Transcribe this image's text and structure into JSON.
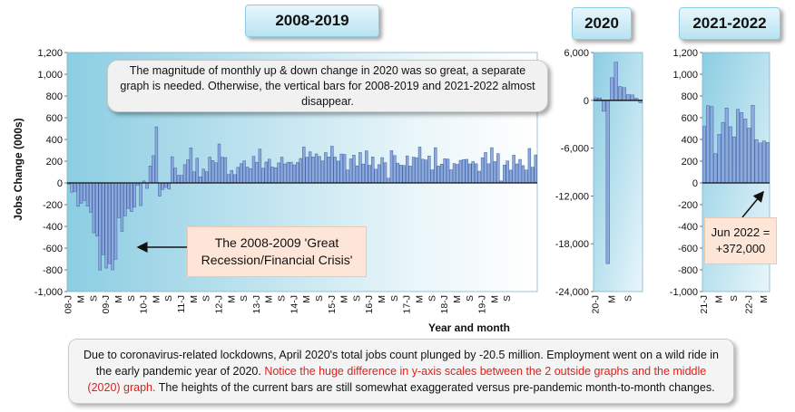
{
  "headers": {
    "period1": "2008-2019",
    "period2": "2020",
    "period3": "2021-2022"
  },
  "callouts": {
    "magnitude": "The magnitude of monthly up & down change in 2020 was so great, a separate graph is needed. Otherwise, the vertical bars for 2008-2019 and 2021-2022 almost disappear.",
    "recession_line1": "The 2008-2009 'Great",
    "recession_line2": "Recession/Financial Crisis'",
    "jun2022_line1": "Jun 2022 =",
    "jun2022_line2": "+372,000"
  },
  "note": {
    "part1": "Due to coronavirus-related lockdowns, April 2020's total jobs count plunged by -20.5 million. Employment went on a wild ride in the early pandemic year of 2020.",
    "part2": "Notice the huge difference in y-axis scales between the 2 outside graphs and the middle (2020) graph.",
    "part3": "The heights of the current bars are still somewhat exaggerated versus pre-pandemic month-to-month changes."
  },
  "colors": {
    "bar_fill": "#8eaadb",
    "bar_stroke": "#3b5ea8",
    "plot_dark": "#8ccde2",
    "plot_light": "#ffffff",
    "note_red": "#e0201b"
  },
  "chart_data": [
    {
      "type": "bar",
      "title": "2008-2019",
      "ylabel": "Jobs Change (000s)",
      "xlabel": "Year and month",
      "ylim": [
        -1000,
        1200
      ],
      "yticks": [
        "1,200",
        "1,000",
        "800",
        "600",
        "400",
        "200",
        "0",
        "-200",
        "-400",
        "-600",
        "-800",
        "-1,000"
      ],
      "xticks": [
        "08-J",
        "M",
        "S",
        "09-J",
        "M",
        "S",
        "10-J",
        "M",
        "S",
        "11-J",
        "M",
        "S",
        "12-J",
        "M",
        "S",
        "13-J",
        "M",
        "S",
        "14-J",
        "M",
        "S",
        "15-J",
        "M",
        "S",
        "16-J",
        "M",
        "S",
        "17-J",
        "M",
        "S",
        "18-J",
        "M",
        "S",
        "19-J",
        "M",
        "S"
      ],
      "values": [
        -12,
        -85,
        -78,
        -215,
        -186,
        -162,
        -213,
        -270,
        -459,
        -489,
        -803,
        -661,
        -784,
        -743,
        -800,
        -703,
        -320,
        -446,
        -304,
        -235,
        -263,
        -224,
        -20,
        -209,
        18,
        -50,
        156,
        251,
        516,
        -122,
        -61,
        -42,
        -57,
        241,
        137,
        71,
        70,
        168,
        212,
        322,
        102,
        227,
        56,
        128,
        104,
        237,
        206,
        186,
        358,
        237,
        233,
        78,
        115,
        76,
        143,
        177,
        203,
        146,
        132,
        244,
        190,
        311,
        135,
        192,
        218,
        146,
        140,
        184,
        237,
        175,
        190,
        191,
        166,
        188,
        225,
        330,
        236,
        286,
        239,
        267,
        243,
        203,
        279,
        239,
        338,
        238,
        201,
        266,
        262,
        119,
        221,
        256,
        157,
        280,
        174,
        295,
        162,
        239,
        126,
        168,
        233,
        186,
        43,
        297,
        252,
        182,
        164,
        160,
        249,
        155,
        237,
        232,
        330,
        218,
        211,
        248,
        120,
        324,
        155,
        173,
        222,
        219,
        121,
        178,
        171,
        208,
        215,
        217,
        175,
        196,
        176,
        108,
        232,
        280,
        176,
        324,
        196,
        270,
        18,
        165,
        203,
        118,
        255,
        175,
        216,
        159,
        119,
        317,
        145,
        258
      ]
    },
    {
      "type": "bar",
      "title": "2020",
      "ylim": [
        -24000,
        6000
      ],
      "yticks": [
        "6,000",
        "0",
        "-6,000",
        "-12,000",
        "-18,000",
        "-24,000"
      ],
      "xticks": [
        "20-J",
        "M",
        "S"
      ],
      "values": [
        315,
        289,
        -1373,
        -20493,
        2833,
        4781,
        1726,
        1583,
        716,
        680,
        264,
        -306
      ]
    },
    {
      "type": "bar",
      "title": "2021-2022",
      "ylim": [
        -1000,
        1200
      ],
      "yticks": [
        "1,200",
        "1,000",
        "800",
        "600",
        "400",
        "200",
        "0",
        "-200",
        "-400",
        "-600",
        "-800",
        "-1,000"
      ],
      "xticks": [
        "21-J",
        "M",
        "S",
        "22-J",
        "M"
      ],
      "values": [
        520,
        710,
        704,
        269,
        447,
        557,
        689,
        517,
        424,
        677,
        647,
        588,
        504,
        714,
        398,
        368,
        386,
        372
      ]
    }
  ]
}
